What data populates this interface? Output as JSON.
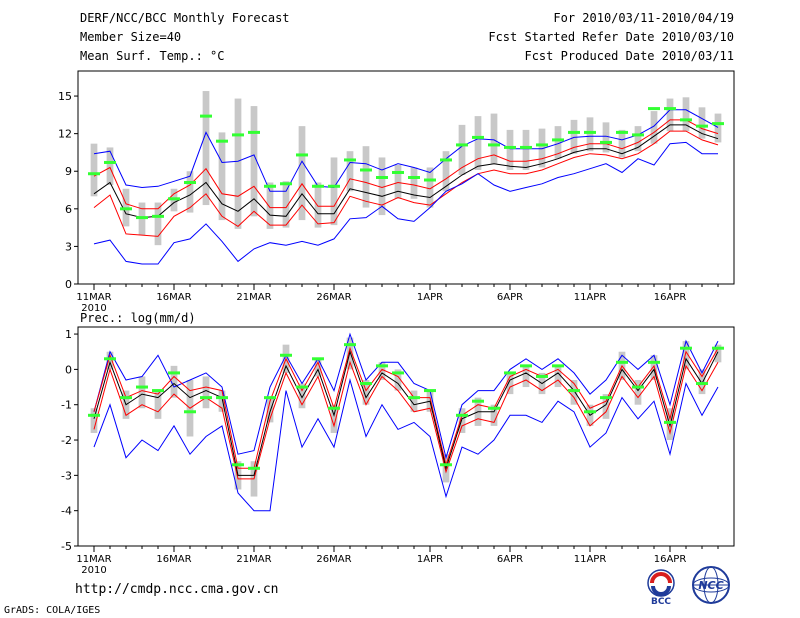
{
  "header": {
    "left_lines": [
      "DERF/NCC/BCC Monthly Forecast",
      "Member Size=40",
      "Mean Surf. Temp.: °C"
    ],
    "right_lines": [
      "For 2010/03/11-2010/04/19",
      "Fcst Started Refer Date 2010/03/10",
      "Fcst Produced Date 2010/03/11"
    ]
  },
  "middle_label": "Prec.: log(mm/d)",
  "footer": {
    "url": "http://cmdp.ncc.cma.gov.cn",
    "credit": "GrADS: COLA/IGES"
  },
  "logos": {
    "bcc_text": "BCC",
    "ncc_text": "NCC"
  },
  "colors": {
    "ensemble_box": "#c8c8c8",
    "green_marker": "#33ff33",
    "blue_line": "#0000ff",
    "red_line": "#ff0000",
    "black_line": "#000000"
  },
  "chart_data": [
    {
      "type": "line",
      "title": "Mean Surf. Temp.: °C",
      "x_tick_labels": [
        "11MAR",
        "16MAR",
        "21MAR",
        "26MAR",
        "1APR",
        "6APR",
        "11APR",
        "16APR"
      ],
      "x_year_label": "2010",
      "x_tick_days": [
        1,
        6,
        11,
        16,
        22,
        27,
        32,
        37
      ],
      "x_range": [
        0,
        41
      ],
      "ylim": [
        0,
        17
      ],
      "y_ticks": [
        0,
        3,
        6,
        9,
        12,
        15
      ],
      "x": [
        1,
        2,
        3,
        4,
        5,
        6,
        7,
        8,
        9,
        10,
        11,
        12,
        13,
        14,
        15,
        16,
        17,
        18,
        19,
        20,
        21,
        22,
        23,
        24,
        25,
        26,
        27,
        28,
        29,
        30,
        31,
        32,
        33,
        34,
        35,
        36,
        37,
        38,
        39,
        40
      ],
      "series": [
        {
          "name": "upper_blue",
          "role": "max",
          "values": [
            10.4,
            10.6,
            7.9,
            7.7,
            7.8,
            8.2,
            8.6,
            12.1,
            9.7,
            9.8,
            10.3,
            7.4,
            7.4,
            9.8,
            7.8,
            7.7,
            9.7,
            9.6,
            9.1,
            9.6,
            9.3,
            8.9,
            10.0,
            11.0,
            11.6,
            11.5,
            10.8,
            10.8,
            10.8,
            11.2,
            11.7,
            11.8,
            11.8,
            11.5,
            11.9,
            12.6,
            13.9,
            13.9,
            13.2,
            12.5
          ]
        },
        {
          "name": "upper_red",
          "role": "upper",
          "values": [
            8.6,
            9.3,
            6.4,
            6.0,
            6.0,
            7.2,
            7.9,
            9.2,
            7.2,
            7.0,
            7.8,
            6.1,
            6.1,
            8.0,
            6.2,
            6.2,
            8.4,
            8.1,
            7.7,
            8.1,
            7.9,
            7.6,
            8.4,
            9.3,
            10.0,
            10.3,
            9.8,
            9.8,
            10.0,
            10.4,
            10.9,
            11.2,
            11.2,
            10.8,
            11.3,
            12.1,
            13.1,
            13.1,
            12.4,
            12.0
          ]
        },
        {
          "name": "mean_black",
          "role": "mean",
          "values": [
            7.2,
            8.1,
            5.6,
            5.3,
            5.4,
            6.5,
            7.1,
            8.1,
            6.4,
            5.8,
            6.8,
            5.5,
            5.4,
            7.2,
            5.6,
            5.6,
            7.6,
            7.3,
            7.0,
            7.4,
            7.1,
            6.9,
            7.8,
            8.7,
            9.4,
            9.6,
            9.4,
            9.3,
            9.6,
            10.0,
            10.5,
            10.8,
            10.8,
            10.4,
            10.9,
            11.8,
            12.7,
            12.7,
            12.0,
            11.6
          ]
        },
        {
          "name": "lower_red",
          "role": "lower",
          "values": [
            6.1,
            7.1,
            4.0,
            3.9,
            3.8,
            5.4,
            6.1,
            7.2,
            5.4,
            4.6,
            5.8,
            4.7,
            4.7,
            6.3,
            4.8,
            4.9,
            7.0,
            6.6,
            6.3,
            6.9,
            6.5,
            6.3,
            7.2,
            8.1,
            8.8,
            9.1,
            8.8,
            8.8,
            9.1,
            9.6,
            10.1,
            10.4,
            10.3,
            10.0,
            10.4,
            11.2,
            12.2,
            12.2,
            11.5,
            11.1
          ]
        },
        {
          "name": "lower_blue",
          "role": "min",
          "values": [
            3.2,
            3.5,
            1.8,
            1.6,
            1.6,
            3.3,
            3.6,
            4.8,
            3.4,
            1.8,
            2.8,
            3.3,
            3.1,
            3.4,
            3.1,
            3.6,
            5.2,
            5.3,
            6.2,
            5.2,
            5.0,
            6.1,
            7.4,
            8.0,
            8.8,
            7.9,
            7.4,
            7.7,
            8.0,
            8.5,
            8.8,
            9.2,
            9.6,
            8.9,
            10.0,
            9.5,
            11.2,
            11.3,
            10.4,
            10.4
          ]
        },
        {
          "name": "green_marker",
          "role": "marker",
          "values": [
            8.8,
            9.7,
            6.0,
            5.3,
            5.4,
            6.8,
            8.1,
            13.4,
            11.4,
            11.9,
            12.1,
            7.8,
            8.0,
            10.3,
            7.8,
            7.8,
            9.9,
            9.1,
            8.5,
            8.9,
            8.5,
            8.3,
            9.9,
            11.1,
            11.7,
            11.1,
            10.9,
            10.9,
            11.1,
            11.5,
            12.1,
            12.1,
            11.3,
            12.1,
            11.9,
            14.0,
            14.0,
            13.1,
            12.6,
            12.8
          ]
        },
        {
          "name": "box_high",
          "role": "box_top",
          "values": [
            11.2,
            10.9,
            7.6,
            6.5,
            6.5,
            7.6,
            9.0,
            15.4,
            12.1,
            14.8,
            14.2,
            8.1,
            8.2,
            12.6,
            8.1,
            10.1,
            10.6,
            11.0,
            10.1,
            9.5,
            9.3,
            9.3,
            10.6,
            12.7,
            13.4,
            13.6,
            12.3,
            12.3,
            12.4,
            12.6,
            13.1,
            13.3,
            12.9,
            12.3,
            12.6,
            13.8,
            14.8,
            14.9,
            14.1,
            13.6
          ]
        },
        {
          "name": "box_low",
          "role": "box_bottom",
          "values": [
            7.0,
            7.9,
            4.6,
            3.9,
            3.1,
            5.8,
            5.7,
            6.3,
            5.1,
            4.4,
            5.4,
            4.4,
            4.5,
            5.1,
            4.5,
            4.7,
            7.4,
            6.1,
            5.5,
            6.8,
            6.8,
            6.1,
            7.4,
            8.7,
            9.1,
            9.6,
            9.1,
            9.1,
            9.3,
            10.0,
            10.4,
            10.6,
            10.5,
            10.1,
            10.6,
            11.2,
            12.2,
            12.2,
            11.6,
            11.3
          ]
        }
      ]
    },
    {
      "type": "line",
      "title": "Prec.: log(mm/d)",
      "x_tick_labels": [
        "11MAR",
        "16MAR",
        "21MAR",
        "26MAR",
        "1APR",
        "6APR",
        "11APR",
        "16APR"
      ],
      "x_year_label": "2010",
      "x_tick_days": [
        1,
        6,
        11,
        16,
        22,
        27,
        32,
        37
      ],
      "x_range": [
        0,
        41
      ],
      "ylim": [
        -5,
        1.2
      ],
      "y_ticks": [
        -5,
        -4,
        -3,
        -2,
        -1,
        0,
        1
      ],
      "x": [
        1,
        2,
        3,
        4,
        5,
        6,
        7,
        8,
        9,
        10,
        11,
        12,
        13,
        14,
        15,
        16,
        17,
        18,
        19,
        20,
        21,
        22,
        23,
        24,
        25,
        26,
        27,
        28,
        29,
        30,
        31,
        32,
        33,
        34,
        35,
        36,
        37,
        38,
        39,
        40
      ],
      "series": [
        {
          "name": "upper_blue",
          "role": "max",
          "values": [
            -1.2,
            0.5,
            -0.3,
            -0.2,
            0.4,
            -0.5,
            -0.3,
            -0.1,
            -0.5,
            -2.4,
            -2.3,
            -0.5,
            0.4,
            -0.4,
            0.3,
            -0.6,
            1.0,
            -0.3,
            0.2,
            0.2,
            -0.4,
            -0.6,
            -2.5,
            -1.0,
            -0.6,
            -0.6,
            0.0,
            0.3,
            0.0,
            0.3,
            -0.1,
            -0.7,
            -0.3,
            0.4,
            0.0,
            0.4,
            -1.0,
            0.8,
            -0.1,
            0.8
          ]
        },
        {
          "name": "upper_red",
          "role": "upper",
          "values": [
            -1.2,
            0.4,
            -0.8,
            -0.6,
            -0.7,
            -0.2,
            -0.6,
            -0.5,
            -0.6,
            -2.8,
            -2.8,
            -0.9,
            0.3,
            -0.6,
            0.2,
            -1.1,
            0.6,
            -0.6,
            0.0,
            -0.2,
            -0.8,
            -0.8,
            -2.7,
            -1.3,
            -1.0,
            -1.1,
            -0.2,
            0.0,
            -0.2,
            0.0,
            -0.4,
            -1.1,
            -0.9,
            0.1,
            -0.5,
            0.1,
            -1.4,
            0.5,
            -0.2,
            0.6
          ]
        },
        {
          "name": "mean_black",
          "role": "mean",
          "values": [
            -1.4,
            0.2,
            -1.0,
            -0.7,
            -0.8,
            -0.4,
            -0.8,
            -0.6,
            -0.8,
            -3.0,
            -3.0,
            -1.2,
            0.1,
            -0.8,
            0.0,
            -1.3,
            0.5,
            -0.8,
            -0.1,
            -0.4,
            -1.0,
            -0.9,
            -2.8,
            -1.4,
            -1.2,
            -1.2,
            -0.3,
            -0.1,
            -0.4,
            -0.1,
            -0.6,
            -1.3,
            -1.0,
            0.0,
            -0.6,
            0.0,
            -1.6,
            0.3,
            -0.4,
            0.5
          ]
        },
        {
          "name": "lower_red",
          "role": "lower",
          "values": [
            -1.7,
            0.0,
            -1.3,
            -1.0,
            -1.2,
            -0.7,
            -1.1,
            -0.8,
            -1.1,
            -3.1,
            -3.1,
            -1.4,
            -0.1,
            -1.0,
            -0.2,
            -1.6,
            0.2,
            -1.0,
            -0.2,
            -0.6,
            -1.2,
            -1.1,
            -2.9,
            -1.6,
            -1.4,
            -1.5,
            -0.5,
            -0.3,
            -0.6,
            -0.3,
            -0.8,
            -1.6,
            -1.2,
            -0.2,
            -0.8,
            -0.2,
            -1.8,
            0.1,
            -0.6,
            0.2
          ]
        },
        {
          "name": "lower_blue",
          "role": "min",
          "values": [
            -2.2,
            -1.0,
            -2.5,
            -2.0,
            -2.3,
            -1.6,
            -2.4,
            -1.9,
            -1.6,
            -3.5,
            -4.0,
            -4.0,
            -0.6,
            -2.2,
            -1.4,
            -2.2,
            -0.3,
            -1.9,
            -1.0,
            -1.7,
            -1.5,
            -1.9,
            -3.6,
            -2.2,
            -2.4,
            -2.0,
            -1.3,
            -1.3,
            -1.5,
            -0.9,
            -1.2,
            -2.2,
            -1.8,
            -0.8,
            -1.4,
            -0.9,
            -2.4,
            -0.4,
            -1.3,
            -0.5
          ]
        },
        {
          "name": "green_marker",
          "role": "marker",
          "values": [
            -1.3,
            0.3,
            -0.8,
            -0.5,
            -0.6,
            -0.1,
            -1.2,
            -0.8,
            -0.8,
            -2.7,
            -2.8,
            -0.8,
            0.4,
            -0.5,
            0.3,
            -1.1,
            0.7,
            -0.4,
            0.1,
            -0.1,
            -0.8,
            -0.6,
            -2.7,
            -1.3,
            -0.9,
            -1.1,
            -0.1,
            0.1,
            -0.2,
            0.1,
            -0.6,
            -1.2,
            -0.8,
            0.2,
            -0.5,
            0.2,
            -1.5,
            0.6,
            -0.4,
            0.6
          ]
        },
        {
          "name": "box_high",
          "role": "box_top",
          "values": [
            -1.1,
            0.5,
            -0.6,
            -0.2,
            -0.6,
            0.1,
            -0.3,
            -0.2,
            -0.6,
            -2.6,
            -2.6,
            -0.8,
            0.7,
            -0.4,
            0.3,
            -1.0,
            0.9,
            -0.3,
            0.2,
            0.0,
            -0.6,
            -0.6,
            -2.4,
            -1.1,
            -0.8,
            -1.0,
            -0.1,
            0.1,
            -0.1,
            0.1,
            -0.3,
            -1.0,
            -0.7,
            0.5,
            -0.3,
            0.4,
            -1.1,
            0.8,
            0.0,
            0.7
          ]
        },
        {
          "name": "box_low",
          "role": "box_bottom",
          "values": [
            -1.8,
            0.0,
            -1.4,
            -1.1,
            -1.4,
            -0.8,
            -1.9,
            -1.1,
            -1.2,
            -3.4,
            -3.6,
            -1.5,
            -0.1,
            -1.1,
            -0.2,
            -1.8,
            0.0,
            -1.0,
            -0.3,
            -0.6,
            -1.2,
            -1.2,
            -3.2,
            -1.8,
            -1.6,
            -1.6,
            -0.7,
            -0.5,
            -0.7,
            -0.5,
            -1.0,
            -1.6,
            -1.4,
            -0.3,
            -1.0,
            -0.3,
            -2.0,
            0.0,
            -0.7,
            0.2
          ]
        }
      ]
    }
  ]
}
